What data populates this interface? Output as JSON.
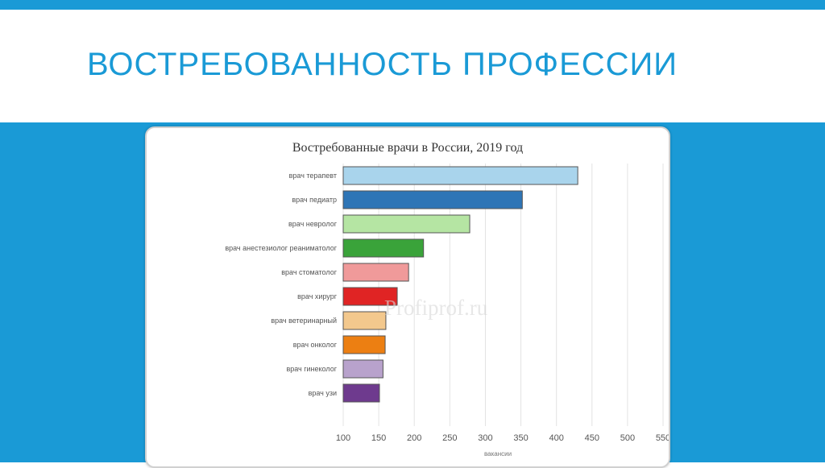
{
  "slide": {
    "title": "ВОСТРЕБОВАННОСТЬ ПРОФЕССИИ"
  },
  "chart_data": {
    "type": "bar",
    "orientation": "horizontal",
    "title": "Востребованные врачи в России, 2019 год",
    "xlabel": "вакансии",
    "ylabel": "",
    "xlim": [
      100,
      550
    ],
    "xticks": [
      100,
      150,
      200,
      250,
      300,
      350,
      400,
      450,
      500,
      550
    ],
    "grid": true,
    "watermark": "Profiprof.ru",
    "categories": [
      "врач терапевт",
      "врач педиатр",
      "врач невролог",
      "врач анестезиолог реаниматолог",
      "врач стоматолог",
      "врач хирург",
      "врач ветеринарный",
      "врач онколог",
      "врач гинеколог",
      "врач узи"
    ],
    "values": [
      430,
      352,
      278,
      213,
      192,
      176,
      160,
      159,
      156,
      151
    ],
    "colors": [
      "#a9d4ec",
      "#2e75b6",
      "#b5e5a3",
      "#3aa33a",
      "#f09a9a",
      "#e02424",
      "#f3c88d",
      "#ec7f12",
      "#b8a2cc",
      "#6e3a8e"
    ]
  }
}
